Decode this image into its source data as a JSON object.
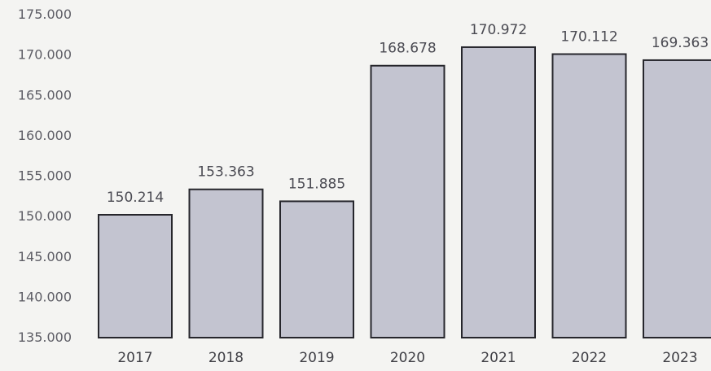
{
  "chart_data": {
    "type": "bar",
    "categories": [
      "2017",
      "2018",
      "2019",
      "2020",
      "2021",
      "2022",
      "2023"
    ],
    "values": [
      150214,
      153363,
      151885,
      168678,
      170972,
      170112,
      169363
    ],
    "data_labels": [
      "150.214",
      "153.363",
      "151.885",
      "168.678",
      "170.972",
      "170.112",
      "169.363"
    ],
    "y_ticks": [
      135000,
      140000,
      145000,
      150000,
      155000,
      160000,
      165000,
      170000,
      175000
    ],
    "y_tick_labels": [
      "135.000",
      "140.000",
      "145.000",
      "150.000",
      "155.000",
      "160.000",
      "165.000",
      "170.000",
      "175.000"
    ],
    "ylim": [
      135000,
      175000
    ],
    "grid": false,
    "legend": "none",
    "title": "",
    "xlabel": "",
    "ylabel": "",
    "colors": {
      "bar_fill": "#c3c4d0",
      "bar_stroke": "#26262c",
      "background": "#f4f4f2"
    }
  }
}
